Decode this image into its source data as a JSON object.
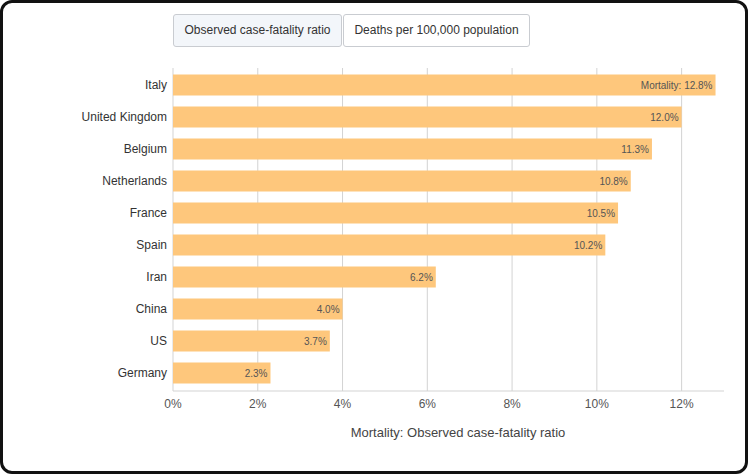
{
  "tabs": [
    "Observed case-fatality ratio",
    "Deaths per 100,000 population"
  ],
  "chart_data": {
    "type": "bar",
    "orientation": "horizontal",
    "xlabel": "Mortality: Observed case-fatality ratio",
    "categories": [
      "Italy",
      "United Kingdom",
      "Belgium",
      "Netherlands",
      "France",
      "Spain",
      "Iran",
      "China",
      "US",
      "Germany"
    ],
    "values": [
      12.8,
      12.0,
      11.3,
      10.8,
      10.5,
      10.2,
      6.2,
      4.0,
      3.7,
      2.3
    ],
    "value_labels": [
      "Mortality: 12.8%",
      "12.0%",
      "11.3%",
      "10.8%",
      "10.5%",
      "10.2%",
      "6.2%",
      "4.0%",
      "3.7%",
      "2.3%"
    ],
    "color": "#fec77c",
    "xlim": [
      0,
      13
    ],
    "xticks": [
      {
        "value": 0,
        "label": "0%"
      },
      {
        "value": 2,
        "label": "2%"
      },
      {
        "value": 4,
        "label": "4%"
      },
      {
        "value": 6,
        "label": "6%"
      },
      {
        "value": 8,
        "label": "8%"
      },
      {
        "value": 10,
        "label": "10%"
      },
      {
        "value": 12,
        "label": "12%"
      }
    ],
    "grid": true,
    "data_labels": true
  }
}
